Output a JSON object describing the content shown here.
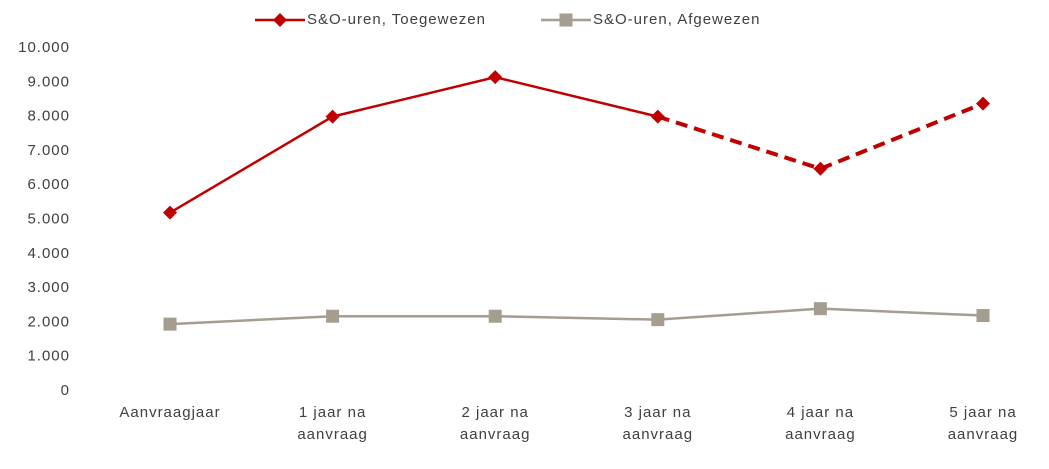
{
  "chart_data": {
    "type": "line",
    "categories": [
      "Aanvraagjaar",
      "1 jaar na aanvraag",
      "2 jaar na aanvraag",
      "3 jaar na aanvraag",
      "4 jaar na aanvraag",
      "5 jaar na aanvraag"
    ],
    "series": [
      {
        "name": "S&O-uren, Toegewezen",
        "color": "#c00000",
        "marker": "diamond",
        "dash_from_index": 3,
        "values": [
          5200,
          8000,
          9150,
          8000,
          6480,
          8380
        ]
      },
      {
        "name": "S&O-uren, Afgewezen",
        "color": "#a59d8f",
        "marker": "square",
        "values": [
          1950,
          2180,
          2180,
          2080,
          2400,
          2200
        ]
      }
    ],
    "ylim": [
      0,
      10000
    ],
    "yticks": [
      0,
      {
        "value": 1000,
        "label": "1.000"
      },
      {
        "value": 2000,
        "label": "2.000"
      },
      {
        "value": 3000,
        "label": "3.000"
      },
      {
        "value": 4000,
        "label": "4.000"
      },
      {
        "value": 5000,
        "label": "5.000"
      },
      {
        "value": 6000,
        "label": "6.000"
      },
      {
        "value": 7000,
        "label": "7.000"
      },
      {
        "value": 8000,
        "label": "8.000"
      },
      {
        "value": 9000,
        "label": "9.000"
      },
      {
        "value": 10000,
        "label": "10.000"
      }
    ],
    "grid": false,
    "legend": "top"
  }
}
